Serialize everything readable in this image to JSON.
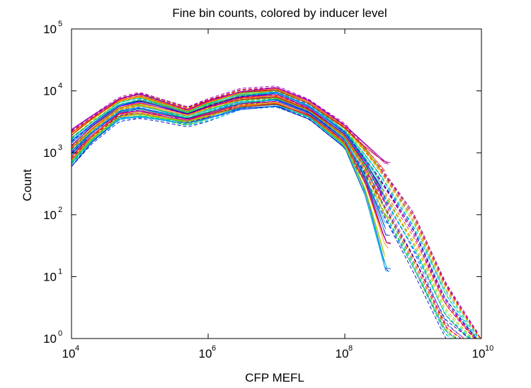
{
  "chart_data": {
    "type": "line",
    "title": "Fine bin counts, colored by inducer level",
    "xlabel": "CFP MEFL",
    "ylabel": "Count",
    "xscale": "log",
    "yscale": "log",
    "xlim": [
      10000,
      10000000000
    ],
    "ylim": [
      1,
      100000
    ],
    "grid": false,
    "x_ticks": [
      {
        "base": "10",
        "exp": "4"
      },
      {
        "base": "10",
        "exp": "6"
      },
      {
        "base": "10",
        "exp": "8"
      },
      {
        "base": "10",
        "exp": "10"
      }
    ],
    "y_ticks": [
      {
        "base": "10",
        "exp": "0"
      },
      {
        "base": "10",
        "exp": "1"
      },
      {
        "base": "10",
        "exp": "2"
      },
      {
        "base": "10",
        "exp": "3"
      },
      {
        "base": "10",
        "exp": "4"
      },
      {
        "base": "10",
        "exp": "5"
      }
    ],
    "series_colors": [
      "#0000b4",
      "#0050ff",
      "#00b4ff",
      "#00c8c8",
      "#00c864",
      "#64d200",
      "#b4c800",
      "#ff9600",
      "#ff3200",
      "#c80032",
      "#c8007f",
      "#9600c8"
    ],
    "solid_envelope": {
      "x": [
        10000,
        20000,
        50000,
        100000,
        200000,
        500000,
        1000000,
        3000000,
        10000000,
        30000000,
        100000000,
        200000000,
        400000000
      ],
      "lower": [
        600,
        1500,
        3500,
        3800,
        3400,
        3000,
        3600,
        5000,
        5500,
        3500,
        1200,
        200,
        12
      ],
      "upper": [
        2400,
        4000,
        7500,
        9000,
        7000,
        5000,
        7000,
        10000,
        11500,
        7000,
        2800,
        1400,
        700
      ]
    },
    "dashed_envelope": {
      "x": [
        10000,
        20000,
        50000,
        100000,
        200000,
        500000,
        1000000,
        3000000,
        10000000,
        30000000,
        100000000,
        300000000,
        1000000000,
        3000000000,
        10000000000
      ],
      "lower": [
        600,
        1400,
        3200,
        3600,
        3200,
        2600,
        3200,
        5000,
        5500,
        3500,
        1200,
        150,
        12,
        1,
        0.5
      ],
      "upper": [
        2400,
        4000,
        8000,
        9500,
        7500,
        5500,
        7500,
        11000,
        12000,
        7500,
        3000,
        700,
        110,
        8,
        1
      ]
    }
  }
}
